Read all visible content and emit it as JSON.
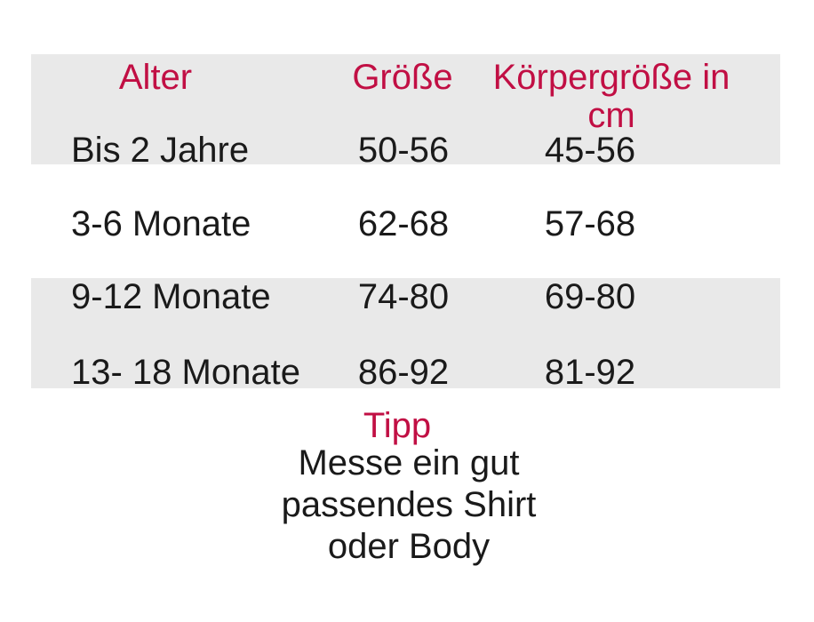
{
  "colors": {
    "accent": "#c10f44",
    "stripe": "#e9e9e9",
    "text": "#1a1a1a",
    "background": "#ffffff"
  },
  "chart_data": {
    "type": "table",
    "title": "",
    "columns": [
      "Alter",
      "Größe",
      "Körpergröße in cm"
    ],
    "rows": [
      [
        "Bis 2 Jahre",
        "50-56",
        "45-56"
      ],
      [
        "3-6 Monate",
        "62-68",
        "57-68"
      ],
      [
        "9-12 Monate",
        "74-80",
        "69-80"
      ],
      [
        "13- 18 Monate",
        "86-92",
        "81-92"
      ]
    ],
    "layout_hints": {
      "striped_rows": true,
      "stripe_groups": [
        [
          "header",
          "row0"
        ],
        [
          "row2",
          "row3"
        ]
      ],
      "header_color": "#c10f44"
    }
  },
  "tip": {
    "title": "Tipp",
    "text": "Messe ein gut passendes Shirt oder Body",
    "lines": [
      "Messe ein gut",
      "passendes Shirt",
      "oder Body"
    ]
  }
}
